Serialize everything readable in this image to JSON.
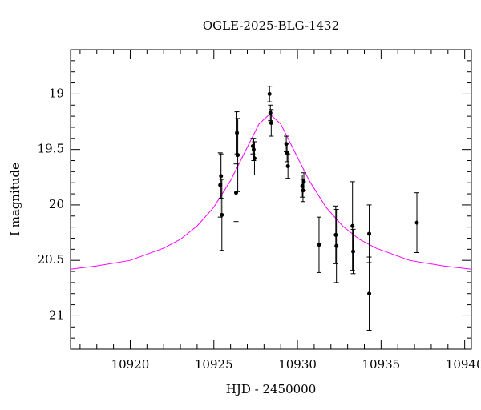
{
  "chart_data": {
    "type": "scatter",
    "title": "OGLE-2025-BLG-1432",
    "x_label": "HJD - 2450000",
    "y_label": "I magnitude",
    "xlim": [
      10916.43,
      10940.4
    ],
    "ylim": [
      21.3,
      18.6
    ],
    "xticks": [
      10920,
      10925,
      10930,
      10935,
      10940
    ],
    "yticks": [
      19,
      19.5,
      20,
      20.5,
      21
    ],
    "xminorticks": [
      10917,
      10918,
      10919,
      10921,
      10922,
      10923,
      10924,
      10926,
      10927,
      10928,
      10929,
      10931,
      10932,
      10933,
      10934,
      10936,
      10937,
      10938,
      10939
    ],
    "yminorticks": [
      18.7,
      18.8,
      18.9,
      19.1,
      19.2,
      19.3,
      19.4,
      19.6,
      19.7,
      19.8,
      19.9,
      20.1,
      20.2,
      20.3,
      20.4,
      20.6,
      20.7,
      20.8,
      20.9,
      21.1,
      21.2
    ],
    "series": [
      {
        "type": "scatter",
        "color": "#000000",
        "x": [
          10925.38,
          10925.43,
          10925.48,
          10926.38,
          10926.43,
          10926.33,
          10927.33,
          10927.38,
          10927.43,
          10928.33,
          10928.38,
          10928.43,
          10929.33,
          10929.38,
          10929.43,
          10930.29,
          10930.33,
          10930.38,
          10931.29,
          10932.29,
          10932.33,
          10933.29,
          10933.33,
          10934.29,
          10934.29,
          10937.14
        ],
        "values": [
          19.82,
          19.74,
          20.09,
          19.35,
          19.55,
          19.89,
          19.47,
          19.5,
          19.58,
          19.0,
          19.17,
          19.26,
          19.45,
          19.53,
          19.65,
          19.83,
          19.87,
          19.79,
          20.36,
          20.27,
          20.37,
          20.19,
          20.42,
          20.26,
          20.8,
          20.16
        ],
        "errors": [
          0.29,
          0.2,
          0.32,
          0.19,
          0.33,
          0.26,
          0.07,
          0.1,
          0.15,
          0.07,
          0.07,
          0.12,
          0.07,
          0.08,
          0.11,
          0.1,
          0.1,
          0.08,
          0.25,
          0.26,
          0.33,
          0.4,
          0.2,
          0.26,
          0.33,
          0.27
        ]
      },
      {
        "type": "line",
        "color": "#ff00ff",
        "x": [
          10916.43,
          10918,
          10920,
          10922,
          10923,
          10924,
          10925,
          10926,
          10927,
          10927.7,
          10928.35,
          10929,
          10929.7,
          10930.7,
          10931.7,
          10932.7,
          10933.7,
          10934.7,
          10936.7,
          10938.7,
          10940.4
        ],
        "values": [
          20.58,
          20.55,
          20.5,
          20.39,
          20.31,
          20.19,
          20.02,
          19.78,
          19.48,
          19.27,
          19.18,
          19.27,
          19.48,
          19.78,
          20.02,
          20.19,
          20.31,
          20.39,
          20.5,
          20.55,
          20.58
        ]
      }
    ]
  }
}
